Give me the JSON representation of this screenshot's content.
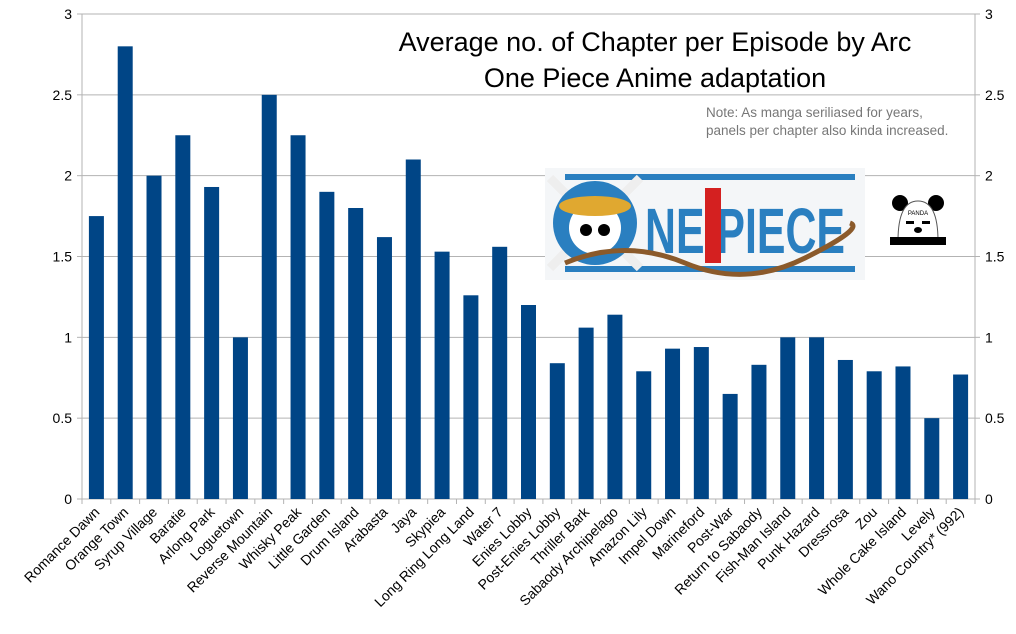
{
  "chart_data": {
    "type": "bar",
    "title": "Average no. of Chapter per Episode by Arc",
    "subtitle": "One Piece Anime adaptation",
    "annotation": "Note: As manga seriliased for years, panels per chapter also kinda increased.",
    "annotation_lines": [
      "Note: As manga seriliased for years,",
      "panels per chapter also kinda increased."
    ],
    "categories": [
      "Romance Dawn",
      "Orange Town",
      "Syrup Village",
      "Baratie",
      "Arlong Park",
      "Loguetown",
      "Reverse Mountain",
      "Whisky Peak",
      "Little Garden",
      "Drum Island",
      "Arabasta",
      "Jaya",
      "Skypiea",
      "Long Ring Long Land",
      "Water 7",
      "Enies Lobby",
      "Post-Enies Lobby",
      "Thriller Bark",
      "Sabaody Archipelago",
      "Amazon Lily",
      "Impel Down",
      "Marineford",
      "Post-War",
      "Return to Sabaody",
      "Fish-Man Island",
      "Punk Hazard",
      "Dressrosa",
      "Zou",
      "Whole Cake Island",
      "Levely",
      "Wano Country* (992)"
    ],
    "values": [
      1.75,
      2.8,
      2.0,
      2.25,
      1.93,
      1.0,
      2.5,
      2.25,
      1.9,
      1.8,
      1.62,
      2.1,
      1.53,
      1.26,
      1.56,
      1.2,
      0.84,
      1.06,
      1.14,
      0.79,
      0.93,
      0.94,
      0.65,
      0.83,
      1.0,
      1.0,
      0.86,
      0.79,
      0.82,
      0.5,
      0.77
    ],
    "xlabel": "",
    "ylabel": "",
    "ylim": [
      0,
      3
    ],
    "yticks": [
      "0",
      "0.5",
      "1",
      "1.5",
      "2",
      "2.5",
      "3"
    ],
    "y_axis_both_sides": true,
    "grid": true,
    "bar_color": "#004586",
    "grid_color": "#b3b3b3"
  },
  "images": {
    "logo_text": "ONE PIECE",
    "panda_text": "PANDA"
  }
}
